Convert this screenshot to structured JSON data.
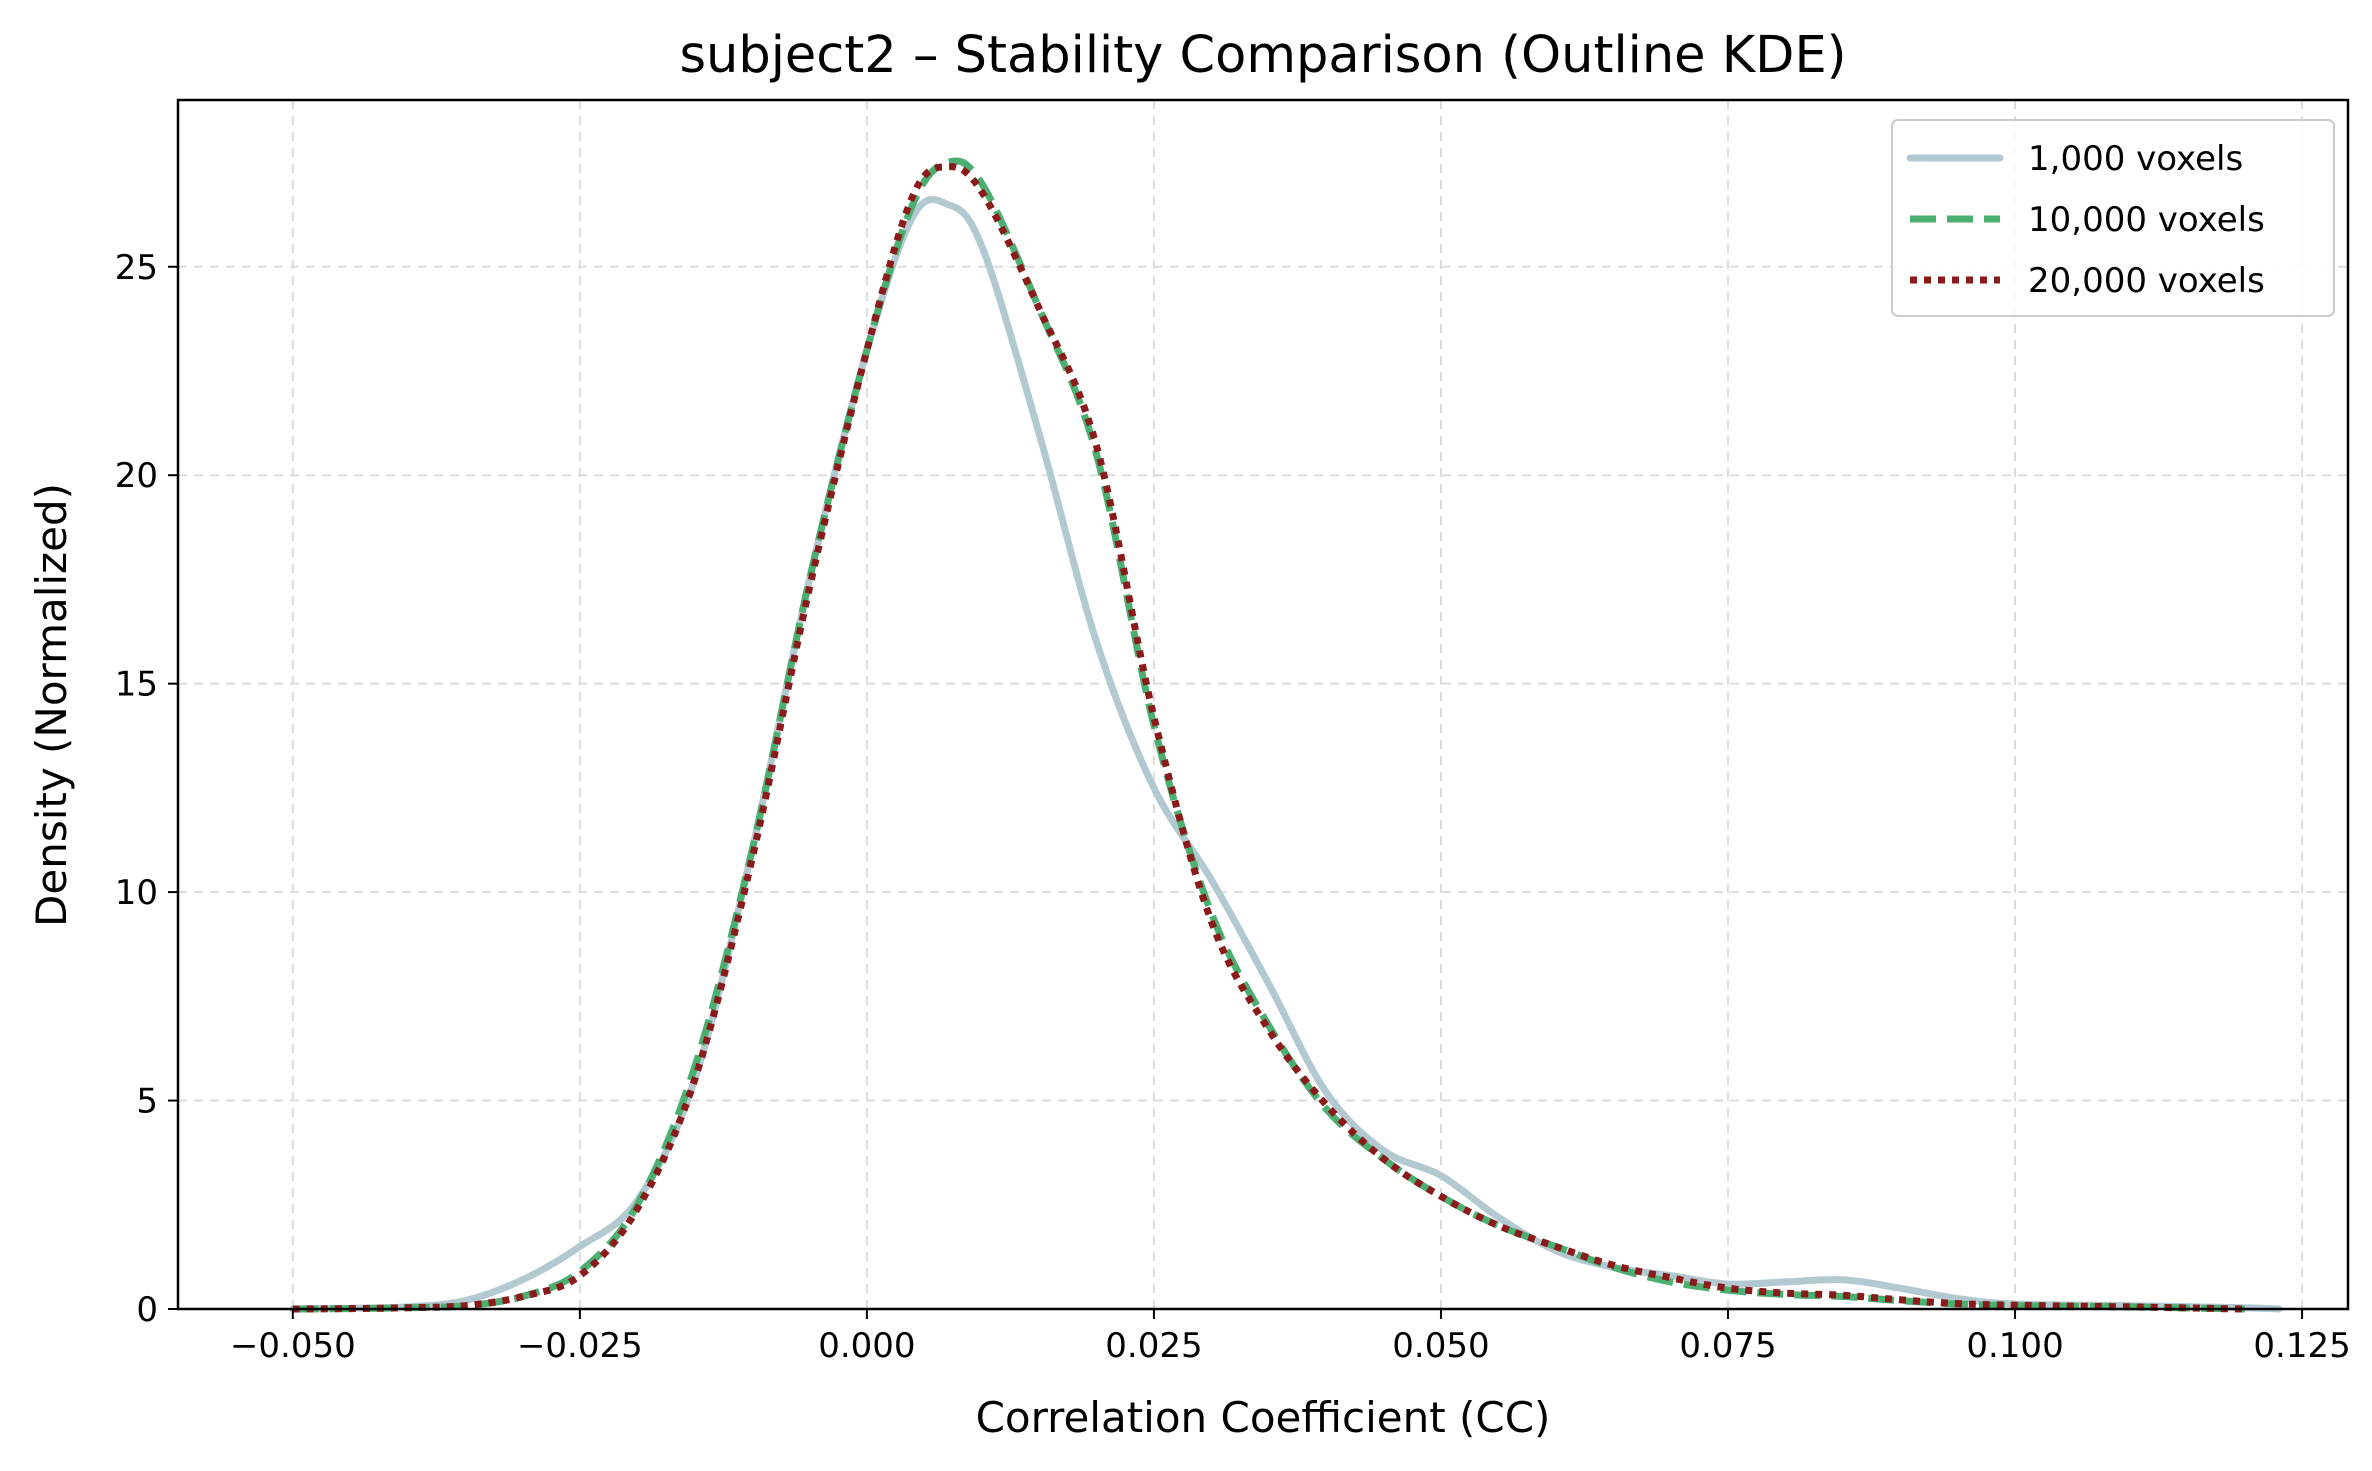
{
  "chart_data": {
    "type": "line",
    "title": "subject2 – Stability Comparison (Outline KDE)",
    "xlabel": "Correlation Coefficient (CC)",
    "ylabel": "Density (Normalized)",
    "xlim": [
      -0.06,
      0.129
    ],
    "ylim": [
      0,
      29
    ],
    "xticks": [
      -0.05,
      -0.025,
      0.0,
      0.025,
      0.05,
      0.075,
      0.1,
      0.125
    ],
    "xtick_labels": [
      "−0.050",
      "−0.025",
      "0.000",
      "0.025",
      "0.050",
      "0.075",
      "0.100",
      "0.125"
    ],
    "yticks": [
      0,
      5,
      10,
      15,
      20,
      25
    ],
    "ytick_labels": [
      "0",
      "5",
      "10",
      "15",
      "20",
      "25"
    ],
    "grid": true,
    "legend_position": "top-right",
    "series": [
      {
        "name": "1,000 voxels",
        "color": "#b3c9d2",
        "style": "solid",
        "x": [
          -0.05,
          -0.045,
          -0.04,
          -0.035,
          -0.03,
          -0.025,
          -0.02,
          -0.015,
          -0.01,
          -0.005,
          0.0,
          0.004,
          0.007,
          0.01,
          0.015,
          0.02,
          0.025,
          0.03,
          0.035,
          0.04,
          0.045,
          0.05,
          0.055,
          0.06,
          0.065,
          0.07,
          0.075,
          0.08,
          0.085,
          0.09,
          0.095,
          0.1,
          0.11,
          0.12,
          0.123
        ],
        "y": [
          0.0,
          0.02,
          0.05,
          0.2,
          0.7,
          1.5,
          2.6,
          5.5,
          11.0,
          17.5,
          23.0,
          26.2,
          26.5,
          25.5,
          21.0,
          16.0,
          12.5,
          10.3,
          7.8,
          5.2,
          3.8,
          3.2,
          2.2,
          1.4,
          1.0,
          0.8,
          0.6,
          0.65,
          0.7,
          0.5,
          0.25,
          0.12,
          0.08,
          0.03,
          0.0
        ]
      },
      {
        "name": "10,000 voxels",
        "color": "#4caf72",
        "style": "dashed",
        "x": [
          -0.05,
          -0.045,
          -0.04,
          -0.035,
          -0.03,
          -0.025,
          -0.02,
          -0.015,
          -0.01,
          -0.005,
          0.0,
          0.004,
          0.007,
          0.01,
          0.015,
          0.02,
          0.025,
          0.03,
          0.035,
          0.04,
          0.045,
          0.05,
          0.055,
          0.06,
          0.065,
          0.07,
          0.075,
          0.08,
          0.085,
          0.09,
          0.095,
          0.1,
          0.11,
          0.12
        ],
        "y": [
          0.0,
          0.01,
          0.03,
          0.08,
          0.3,
          0.9,
          2.5,
          5.8,
          11.0,
          17.5,
          23.0,
          26.5,
          27.5,
          27.0,
          24.0,
          20.5,
          14.0,
          9.5,
          6.8,
          4.8,
          3.6,
          2.7,
          2.0,
          1.5,
          1.0,
          0.65,
          0.45,
          0.35,
          0.3,
          0.2,
          0.12,
          0.08,
          0.05,
          0.0
        ]
      },
      {
        "name": "20,000 voxels",
        "color": "#8b1a1a",
        "style": "dotted",
        "x": [
          -0.05,
          -0.045,
          -0.04,
          -0.035,
          -0.03,
          -0.025,
          -0.02,
          -0.015,
          -0.01,
          -0.005,
          0.0,
          0.004,
          0.007,
          0.01,
          0.015,
          0.02,
          0.025,
          0.03,
          0.035,
          0.04,
          0.045,
          0.05,
          0.055,
          0.06,
          0.065,
          0.07,
          0.075,
          0.08,
          0.085,
          0.09,
          0.095,
          0.1,
          0.11,
          0.12
        ],
        "y": [
          0.0,
          0.01,
          0.03,
          0.08,
          0.3,
          0.8,
          2.4,
          5.5,
          10.8,
          17.3,
          23.0,
          26.7,
          27.4,
          26.8,
          24.0,
          20.7,
          14.2,
          9.3,
          6.7,
          4.9,
          3.6,
          2.7,
          2.0,
          1.5,
          1.05,
          0.75,
          0.5,
          0.38,
          0.33,
          0.22,
          0.13,
          0.09,
          0.05,
          0.0
        ]
      }
    ]
  }
}
